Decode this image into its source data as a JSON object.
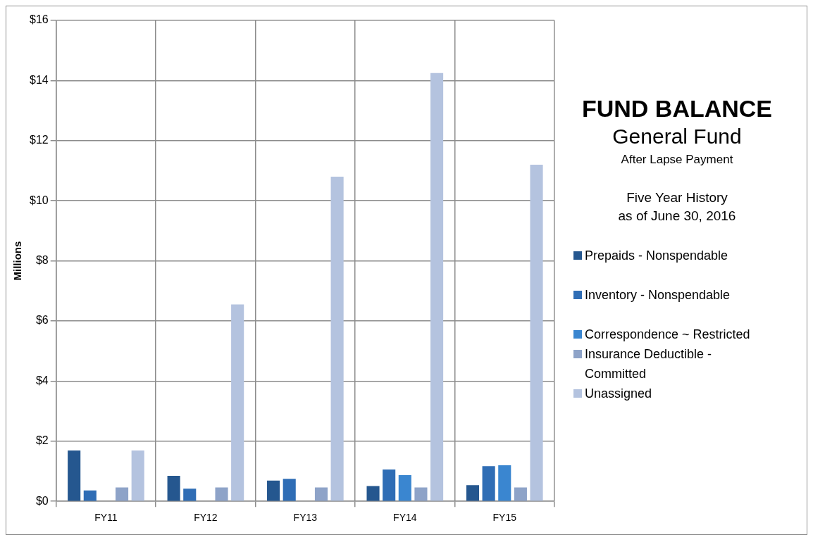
{
  "chart_data": {
    "type": "bar",
    "title": "FUND BALANCE",
    "subtitle": "General Fund",
    "annotations": [
      "After Lapse Payment",
      "Five Year History",
      "as of June 30, 2016"
    ],
    "ylabel": "Millions",
    "categories": [
      "FY11",
      "FY12",
      "FY13",
      "FY14",
      "FY15"
    ],
    "series": [
      {
        "name": "Prepaids - Nonspendable",
        "color": "#25578f",
        "values": [
          1.69,
          0.85,
          0.69,
          0.51,
          0.54
        ]
      },
      {
        "name": "Inventory - Nonspendable",
        "color": "#2f6db5",
        "values": [
          0.36,
          0.42,
          0.75,
          1.06,
          1.17
        ]
      },
      {
        "name": "Correspondence ~ Restricted",
        "color": "#3a86d0",
        "values": [
          0,
          0,
          0,
          0.87,
          1.2
        ]
      },
      {
        "name": "Insurance Deductible - Committed",
        "color": "#8ea3c8",
        "values": [
          0.46,
          0.46,
          0.46,
          0.46,
          0.46
        ]
      },
      {
        "name": "Unassigned",
        "color": "#b4c3df",
        "values": [
          1.69,
          6.55,
          10.8,
          14.25,
          11.2
        ]
      }
    ],
    "ylim": [
      0,
      16
    ],
    "yticks": [
      {
        "value": 0,
        "label": "$0"
      },
      {
        "value": 2,
        "label": "$2"
      },
      {
        "value": 4,
        "label": "$4"
      },
      {
        "value": 6,
        "label": "$6"
      },
      {
        "value": 8,
        "label": "$8"
      },
      {
        "value": 10,
        "label": "$10"
      },
      {
        "value": 12,
        "label": "$12"
      },
      {
        "value": 14,
        "label": "$14"
      },
      {
        "value": 16,
        "label": "$16"
      }
    ],
    "grid": true,
    "legend": "right"
  }
}
